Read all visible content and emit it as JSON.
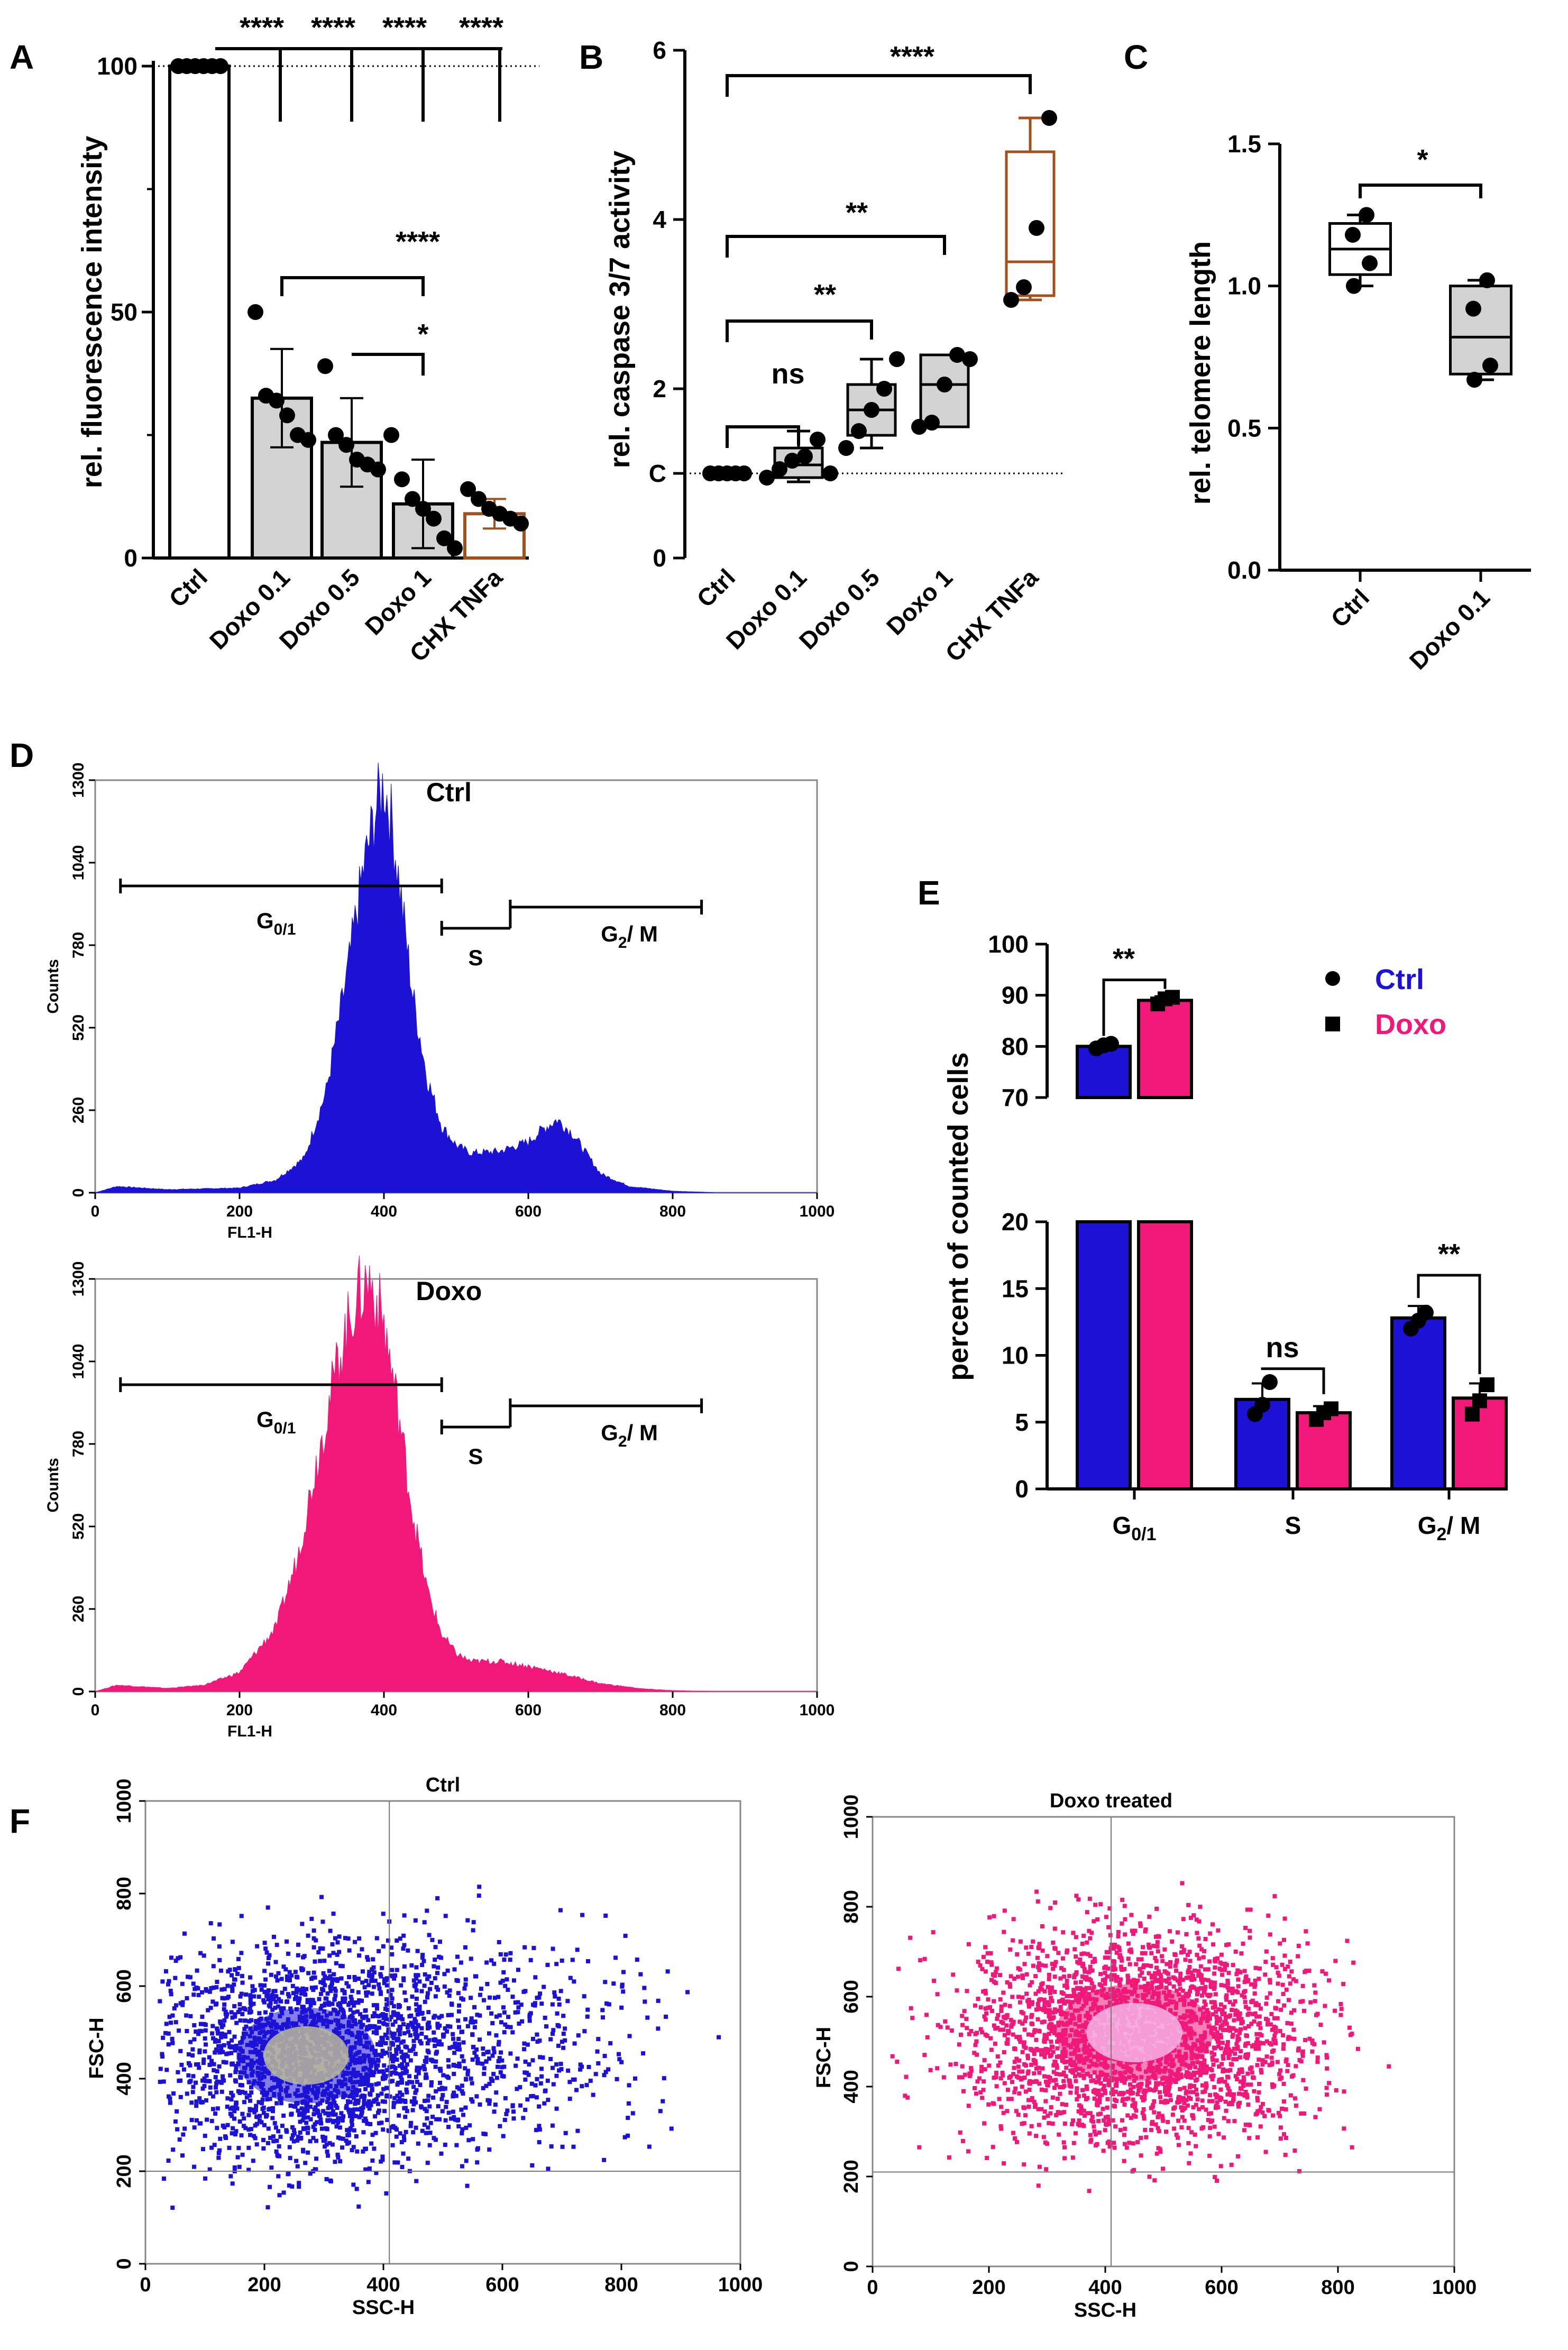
{
  "panel_labels": {
    "A": "A",
    "B": "B",
    "C": "C",
    "D": "D",
    "E": "E",
    "F": "F"
  },
  "colors": {
    "gray_fill": "#d3d3d3",
    "brown": "#a0521e",
    "blue": "#1c12d6",
    "pink": "#f0197a",
    "black": "#000000"
  },
  "chart_data": [
    {
      "panel": "A",
      "type": "bar",
      "ylabel": "rel. fluorescence intensity",
      "ylim": [
        0,
        100
      ],
      "yticks": [
        "0",
        "50",
        "100"
      ],
      "categories": [
        "Ctrl",
        "Doxo 0.1",
        "Doxo 0.5",
        "Doxo 1",
        "CHX TNFa"
      ],
      "values": [
        100,
        32.5,
        23.5,
        11,
        9
      ],
      "errors": [
        0,
        10,
        9,
        9,
        3
      ],
      "reference_line": 100,
      "points": [
        [
          100,
          100,
          100,
          100,
          100,
          100
        ],
        [
          50,
          33,
          32,
          29,
          25,
          24
        ],
        [
          39,
          25,
          23,
          20,
          19,
          18
        ],
        [
          25,
          16,
          12,
          10,
          8,
          4,
          2
        ],
        [
          14,
          12,
          10,
          9,
          8,
          7
        ]
      ],
      "significance": [
        {
          "text": "****",
          "from": 0,
          "to": 1
        },
        {
          "text": "****",
          "from": 0,
          "to": 2
        },
        {
          "text": "****",
          "from": 0,
          "to": 3
        },
        {
          "text": "****",
          "from": 0,
          "to": 4
        },
        {
          "text": "****",
          "from": 1,
          "to": 3
        },
        {
          "text": "*",
          "from": 2,
          "to": 3
        }
      ]
    },
    {
      "panel": "B",
      "type": "box",
      "ylabel": "rel. caspase 3/7 activity",
      "ylim": [
        0,
        6
      ],
      "yticks": [
        "0",
        "C",
        "2",
        "4",
        "6"
      ],
      "categories": [
        "Ctrl",
        "Doxo 0.1",
        "Doxo 0.5",
        "Doxo 1",
        "CHX TNFa"
      ],
      "boxes": [
        {
          "min": 1,
          "q1": 1,
          "median": 1,
          "q3": 1,
          "max": 1
        },
        {
          "min": 0.9,
          "q1": 0.95,
          "median": 1.1,
          "q3": 1.3,
          "max": 1.5
        },
        {
          "min": 1.3,
          "q1": 1.45,
          "median": 1.75,
          "q3": 2.05,
          "max": 2.35
        },
        {
          "min": 1.55,
          "q1": 1.55,
          "median": 2.05,
          "q3": 2.4,
          "max": 2.4
        },
        {
          "min": 3.05,
          "q1": 3.1,
          "median": 3.5,
          "q3": 4.8,
          "max": 5.2
        }
      ],
      "points": [
        [
          1,
          1,
          1,
          1,
          1
        ],
        [
          0.95,
          1.05,
          1.15,
          1.2,
          1.4,
          1.0
        ],
        [
          1.3,
          1.5,
          1.75,
          2.0,
          2.35
        ],
        [
          1.55,
          1.6,
          2.05,
          2.4,
          2.35
        ],
        [
          3.05,
          3.2,
          3.9,
          5.2
        ]
      ],
      "reference_line": 1,
      "significance": [
        {
          "text": "ns",
          "from": 0,
          "to": 1
        },
        {
          "text": "**",
          "from": 0,
          "to": 2
        },
        {
          "text": "**",
          "from": 0,
          "to": 3
        },
        {
          "text": "****",
          "from": 0,
          "to": 4
        }
      ]
    },
    {
      "panel": "C",
      "type": "box",
      "ylabel": "rel. telomere length",
      "ylim": [
        0,
        1.5
      ],
      "yticks": [
        "0.0",
        "0.5",
        "1.0",
        "1.5"
      ],
      "categories": [
        "Ctrl",
        "Doxo 0.1"
      ],
      "boxes": [
        {
          "min": 1.0,
          "q1": 1.04,
          "median": 1.13,
          "q3": 1.22,
          "max": 1.25
        },
        {
          "min": 0.67,
          "q1": 0.69,
          "median": 0.82,
          "q3": 1.0,
          "max": 1.02
        }
      ],
      "points": [
        [
          1.0,
          1.08,
          1.18,
          1.25
        ],
        [
          0.67,
          0.72,
          0.92,
          1.02
        ]
      ],
      "significance": [
        {
          "text": "*",
          "from": 0,
          "to": 1
        }
      ]
    },
    {
      "panel": "D",
      "type": "histogram",
      "xlabel": "FL1-H",
      "ylabel": "Counts",
      "xlim": [
        0,
        1000
      ],
      "ylim": [
        0,
        1300
      ],
      "xticks": [
        "0",
        "200",
        "400",
        "600",
        "800",
        "1000"
      ],
      "yticks": [
        "0",
        "260",
        "520",
        "780",
        "1040",
        "1300"
      ],
      "plots": [
        {
          "title": "Ctrl",
          "color": "#1c12d6",
          "profile_x": [
            0,
            30,
            100,
            200,
            250,
            290,
            320,
            350,
            370,
            390,
            400,
            410,
            420,
            440,
            460,
            480,
            500,
            520,
            560,
            600,
            620,
            640,
            660,
            700,
            740,
            800,
            840,
            860,
            1000
          ],
          "profile_y": [
            0,
            20,
            10,
            15,
            40,
            110,
            320,
            700,
            1000,
            1220,
            1290,
            1180,
            1000,
            620,
            360,
            210,
            150,
            125,
            130,
            160,
            200,
            230,
            190,
            60,
            20,
            5,
            2,
            0,
            0
          ]
        },
        {
          "title": "Doxo",
          "color": "#f0197a",
          "profile_x": [
            0,
            30,
            100,
            150,
            200,
            250,
            280,
            310,
            340,
            360,
            380,
            400,
            420,
            440,
            460,
            480,
            500,
            520,
            560,
            600,
            640,
            700,
            760,
            800,
            860,
            1000
          ],
          "profile_y": [
            0,
            20,
            10,
            20,
            60,
            200,
            420,
            760,
            1080,
            1230,
            1300,
            1160,
            880,
            560,
            320,
            180,
            120,
            95,
            95,
            80,
            60,
            25,
            8,
            3,
            0,
            0
          ]
        }
      ],
      "gates": {
        "g01": {
          "label": "G0/1",
          "start": 35,
          "end": 480
        },
        "s": {
          "label": "S",
          "start": 480,
          "end": 575
        },
        "g2m": {
          "label": "G2/ M",
          "start": 575,
          "end": 840
        }
      }
    },
    {
      "panel": "E",
      "type": "bar",
      "ylabel": "percent of counted cells",
      "categories": [
        "G0/1",
        "S",
        "G2/ M"
      ],
      "axis_break": {
        "lower": [
          0,
          20
        ],
        "upper": [
          70,
          100
        ]
      },
      "yticks_lower": [
        "0",
        "5",
        "10",
        "15",
        "20"
      ],
      "yticks_upper": [
        "70",
        "80",
        "90",
        "100"
      ],
      "series": [
        {
          "name": "Ctrl",
          "color": "#1c12d6",
          "marker": "circle",
          "values": [
            80,
            6.7,
            12.8
          ],
          "errors": [
            0.6,
            1.2,
            0.9
          ],
          "points": [
            [
              79.6,
              80.2,
              80.5
            ],
            [
              5.6,
              6.3,
              8.0
            ],
            [
              12.0,
              12.6,
              13.2
            ]
          ]
        },
        {
          "name": "Doxo",
          "color": "#f0197a",
          "marker": "square",
          "values": [
            89,
            5.7,
            6.8
          ],
          "errors": [
            0.8,
            0.5,
            1.1
          ],
          "points": [
            [
              88.3,
              89.3,
              89.6
            ],
            [
              5.2,
              5.7,
              6.0
            ],
            [
              5.6,
              6.6,
              7.8
            ]
          ]
        }
      ],
      "significance": [
        {
          "text": "**",
          "category": 0
        },
        {
          "text": "ns",
          "category": 1
        },
        {
          "text": "**",
          "category": 2
        }
      ]
    },
    {
      "panel": "F",
      "type": "scatter",
      "xlabel": "SSC-H",
      "ylabel": "FSC-H",
      "xlim": [
        0,
        1000
      ],
      "ylim": [
        0,
        1000
      ],
      "xticks": [
        "0",
        "200",
        "400",
        "600",
        "800",
        "1000"
      ],
      "yticks": [
        "0",
        "200",
        "400",
        "600",
        "800",
        "1000"
      ],
      "plots": [
        {
          "title": "Ctrl",
          "color": "#1c12d6",
          "core_color": "#b8b89a",
          "center": [
            270,
            450
          ],
          "spread": [
            130,
            115
          ],
          "tail": "right",
          "quad_x": 410,
          "quad_y": 200
        },
        {
          "title": "Doxo treated",
          "color": "#f0197a",
          "core_color": "#f6b4e6",
          "center": [
            450,
            520
          ],
          "spread": [
            150,
            120
          ],
          "tail": "none",
          "quad_x": 410,
          "quad_y": 210
        }
      ]
    }
  ]
}
